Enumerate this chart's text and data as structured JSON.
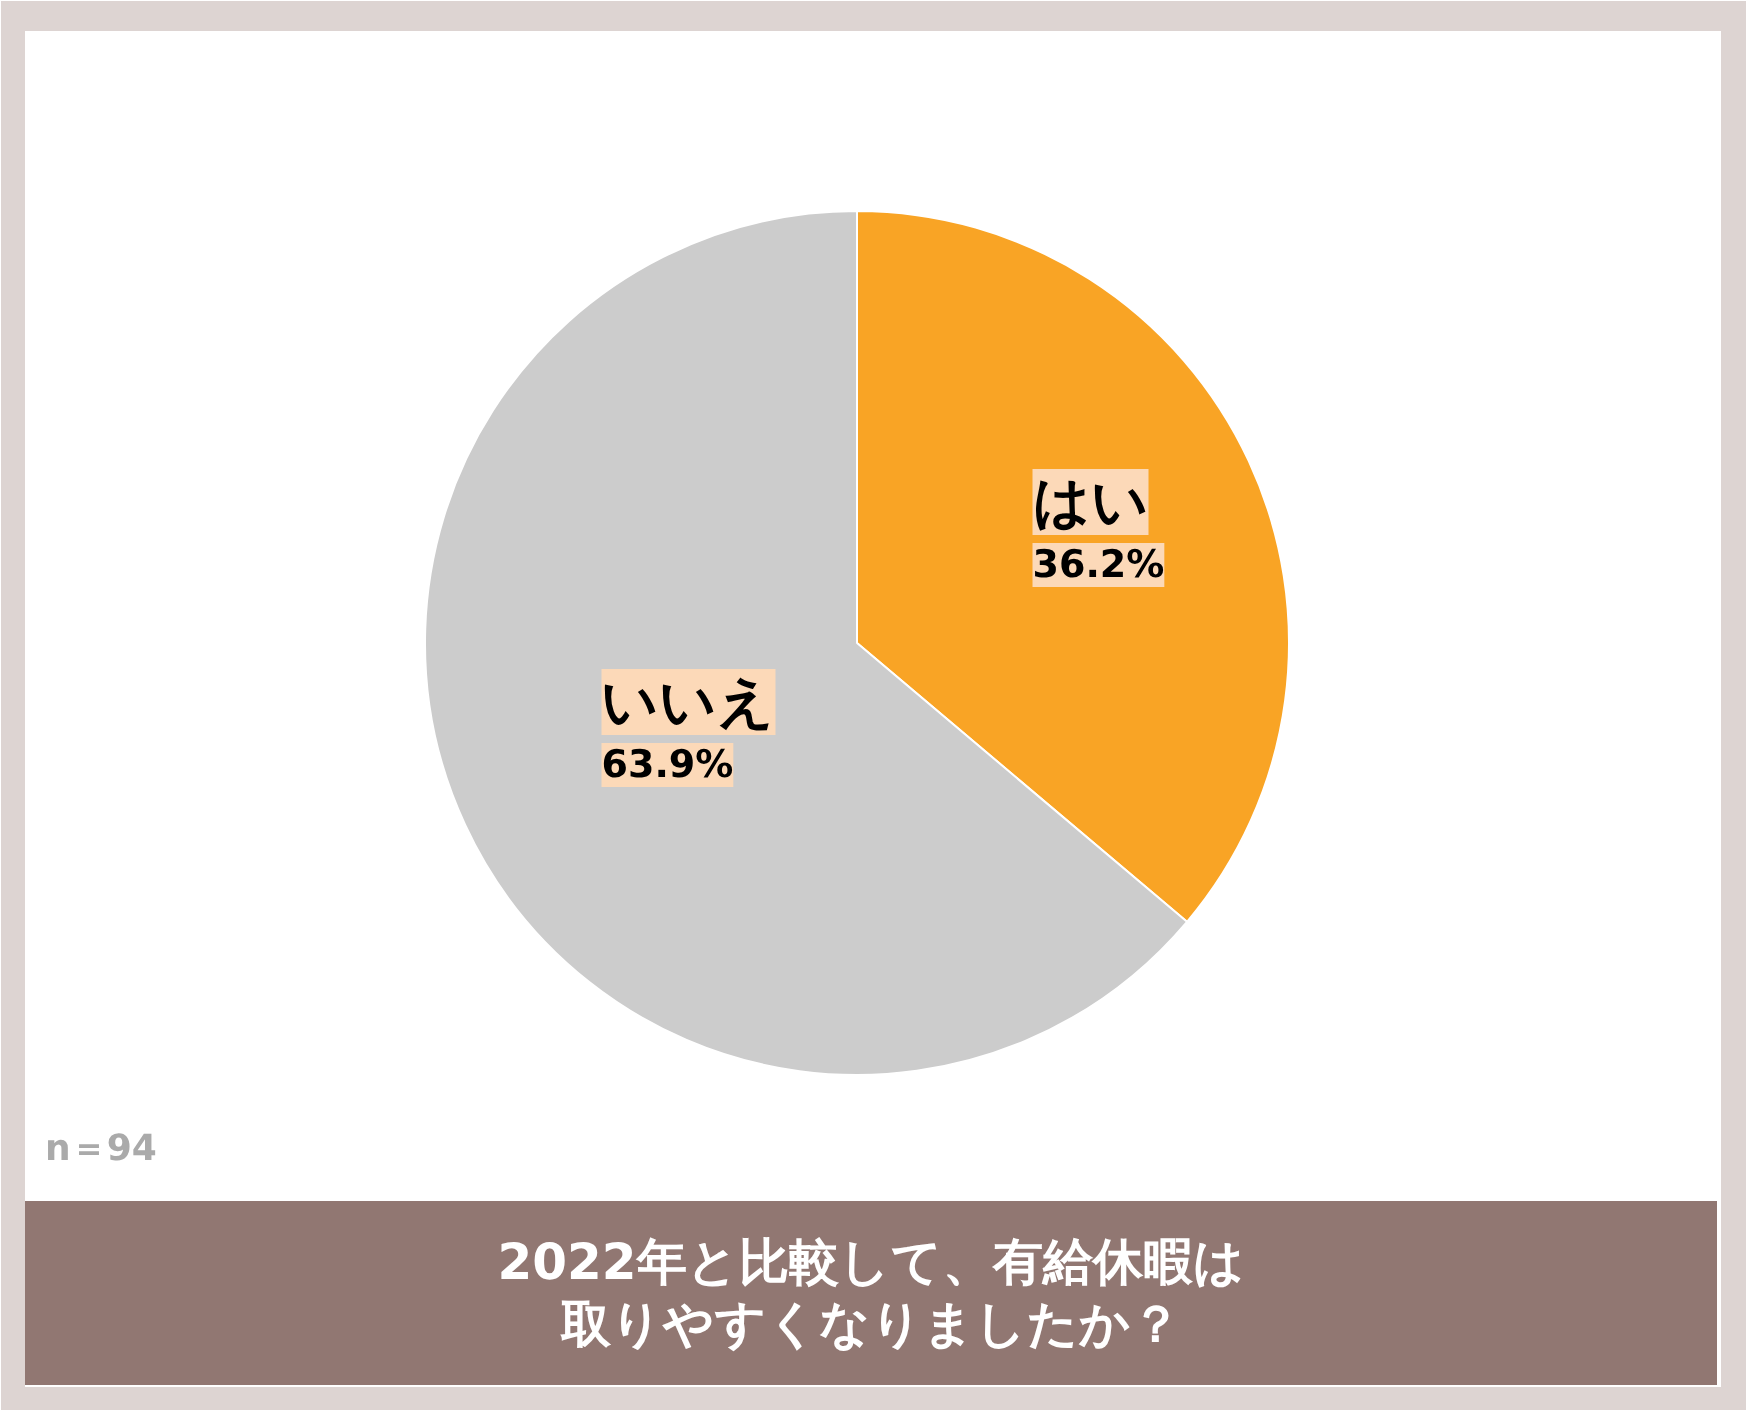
{
  "chart_data": {
    "type": "pie",
    "title": "2022年と比較して、有給休暇は取りやすくなりましたか？",
    "categories": [
      "はい",
      "いいえ"
    ],
    "values": [
      36.2,
      63.9
    ],
    "value_labels": [
      "36.2%",
      "63.9%"
    ],
    "colors": [
      "#f9a425",
      "#cccccc"
    ],
    "annotations": [
      "n＝94"
    ]
  }
}
